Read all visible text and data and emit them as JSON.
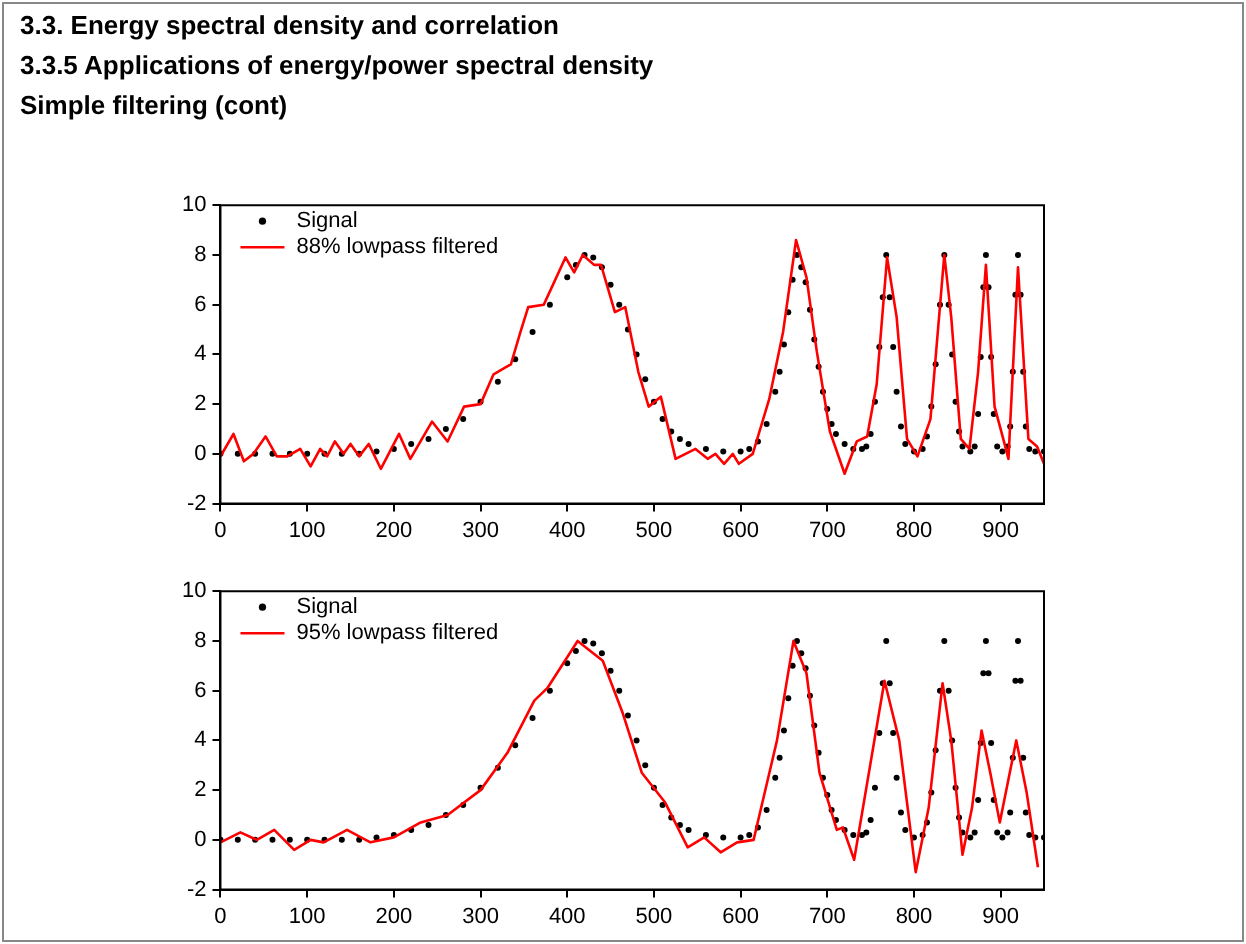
{
  "chart_data": [
    {
      "type": "scatter",
      "title": "3.3. Energy spectral density and correlation",
      "subtitle": "3.3.5 Applications of energy/power spectral density",
      "annotations": [
        "Simple filtering (cont)"
      ],
      "xlim": [
        0,
        950
      ],
      "ylim": [
        -2,
        10
      ],
      "xticks": [
        0,
        100,
        200,
        300,
        400,
        500,
        600,
        700,
        800,
        900
      ],
      "yticks": [
        -2,
        0,
        2,
        4,
        6,
        8,
        10
      ],
      "grid": false,
      "legend": "top left",
      "series": [
        {
          "name": "Signal",
          "marker": "circle",
          "color": "#000000",
          "x": [
            0,
            20,
            40,
            60,
            80,
            100,
            120,
            140,
            160,
            180,
            200,
            220,
            240,
            260,
            280,
            300,
            320,
            340,
            360,
            380,
            400,
            410,
            420,
            430,
            440,
            450,
            460,
            470,
            480,
            490,
            500,
            510,
            520,
            530,
            540,
            560,
            580,
            600,
            610,
            620,
            630,
            640,
            645,
            650,
            655,
            660,
            665,
            670,
            675,
            680,
            685,
            690,
            695,
            700,
            705,
            710,
            720,
            730,
            740,
            745,
            750,
            755,
            760,
            764,
            768,
            772,
            776,
            780,
            785,
            790,
            800,
            810,
            815,
            820,
            825,
            830,
            835,
            840,
            844,
            848,
            852,
            856,
            865,
            870,
            874,
            877,
            880,
            883,
            886,
            889,
            892,
            896,
            902,
            908,
            911,
            914,
            917,
            920,
            923,
            926,
            929,
            933,
            940,
            950
          ],
          "values": [
            0,
            0,
            0,
            0,
            0,
            0,
            0,
            0,
            0,
            0.1,
            0.2,
            0.4,
            0.6,
            1.0,
            1.4,
            2.1,
            2.9,
            3.8,
            4.9,
            6.0,
            7.1,
            7.6,
            8.0,
            7.9,
            7.5,
            6.8,
            6.0,
            5.0,
            4.0,
            3.0,
            2.1,
            1.4,
            0.9,
            0.6,
            0.4,
            0.2,
            0.1,
            0.1,
            0.2,
            0.5,
            1.2,
            2.5,
            3.3,
            4.4,
            5.7,
            7.0,
            8.0,
            7.5,
            6.9,
            5.8,
            4.6,
            3.5,
            2.5,
            1.8,
            1.2,
            0.8,
            0.4,
            0.2,
            0.2,
            0.3,
            0.8,
            2.1,
            4.3,
            6.3,
            8.0,
            6.3,
            4.3,
            2.5,
            1.1,
            0.4,
            0.1,
            0.2,
            0.7,
            1.9,
            3.6,
            6.0,
            8.0,
            6.0,
            4.0,
            2.1,
            0.9,
            0.3,
            0.1,
            0.3,
            1.6,
            3.9,
            6.7,
            8.0,
            6.7,
            3.9,
            1.6,
            0.3,
            0.1,
            0.3,
            1.1,
            3.3,
            6.4,
            8.0,
            6.4,
            3.3,
            1.1,
            0.2,
            0.1,
            0.1
          ]
        },
        {
          "name": "88% lowpass filtered",
          "type": "line",
          "marker": "none",
          "color": "#ff0000",
          "x": [
            0,
            15,
            27,
            38,
            52,
            65,
            77,
            92,
            104,
            115,
            123,
            132,
            142,
            150,
            160,
            171,
            185,
            206,
            219,
            244,
            262,
            281,
            300,
            315,
            335,
            346,
            355,
            373,
            398,
            408,
            418,
            431,
            439,
            455,
            467,
            482,
            494,
            508,
            525,
            548,
            562,
            571,
            581,
            591,
            598,
            614,
            633,
            649,
            664,
            676,
            688,
            703,
            720,
            734,
            746,
            757,
            769,
            780,
            792,
            804,
            819,
            835,
            843,
            854,
            864,
            874,
            883,
            893,
            903,
            909,
            920,
            932,
            942,
            950
          ],
          "values": [
            -0.1,
            0.8,
            -0.3,
            0,
            0.7,
            -0.1,
            -0.1,
            0.2,
            -0.5,
            0.2,
            -0.1,
            0.5,
            0,
            0.4,
            -0.1,
            0.4,
            -0.6,
            0.8,
            -0.2,
            1.3,
            0.5,
            1.9,
            2.0,
            3.2,
            3.6,
            4.9,
            5.9,
            6.0,
            7.9,
            7.3,
            8.0,
            7.6,
            7.6,
            5.7,
            5.9,
            3.3,
            1.9,
            2.3,
            -0.2,
            0.2,
            -0.2,
            0,
            -0.4,
            0,
            -0.4,
            0,
            2.2,
            4.9,
            8.6,
            7.1,
            4.1,
            0.9,
            -0.8,
            0.5,
            0.7,
            2.8,
            7.9,
            5.5,
            0.6,
            -0.1,
            1.4,
            8.0,
            5.5,
            0.6,
            0.2,
            3.3,
            7.6,
            1.9,
            0.6,
            -0.2,
            7.5,
            0.6,
            0.3,
            -0.4
          ]
        }
      ]
    },
    {
      "type": "scatter",
      "xlim": [
        0,
        950
      ],
      "ylim": [
        -2,
        10
      ],
      "xticks": [
        0,
        100,
        200,
        300,
        400,
        500,
        600,
        700,
        800,
        900
      ],
      "yticks": [
        -2,
        0,
        2,
        4,
        6,
        8,
        10
      ],
      "grid": false,
      "legend": "top left",
      "series": [
        {
          "name": "Signal",
          "marker": "circle",
          "color": "#000000",
          "x": [
            0,
            20,
            40,
            60,
            80,
            100,
            120,
            140,
            160,
            180,
            200,
            220,
            240,
            260,
            280,
            300,
            320,
            340,
            360,
            380,
            400,
            410,
            420,
            430,
            440,
            450,
            460,
            470,
            480,
            490,
            500,
            510,
            520,
            530,
            540,
            560,
            580,
            600,
            610,
            620,
            630,
            640,
            645,
            650,
            655,
            660,
            665,
            670,
            675,
            680,
            685,
            690,
            695,
            700,
            705,
            710,
            720,
            730,
            740,
            745,
            750,
            755,
            760,
            764,
            768,
            772,
            776,
            780,
            785,
            790,
            800,
            810,
            815,
            820,
            825,
            830,
            835,
            840,
            844,
            848,
            852,
            856,
            865,
            870,
            874,
            877,
            880,
            883,
            886,
            889,
            892,
            896,
            902,
            908,
            911,
            914,
            917,
            920,
            923,
            926,
            929,
            933,
            940,
            950
          ],
          "values": [
            0,
            0,
            0,
            0,
            0,
            0,
            0,
            0,
            0,
            0.1,
            0.2,
            0.4,
            0.6,
            1.0,
            1.4,
            2.1,
            2.9,
            3.8,
            4.9,
            6.0,
            7.1,
            7.6,
            8.0,
            7.9,
            7.5,
            6.8,
            6.0,
            5.0,
            4.0,
            3.0,
            2.1,
            1.4,
            0.9,
            0.6,
            0.4,
            0.2,
            0.1,
            0.1,
            0.2,
            0.5,
            1.2,
            2.5,
            3.3,
            4.4,
            5.7,
            7.0,
            8.0,
            7.5,
            6.9,
            5.8,
            4.6,
            3.5,
            2.5,
            1.8,
            1.2,
            0.8,
            0.4,
            0.2,
            0.2,
            0.3,
            0.8,
            2.1,
            4.3,
            6.3,
            8.0,
            6.3,
            4.3,
            2.5,
            1.1,
            0.4,
            0.1,
            0.2,
            0.7,
            1.9,
            3.6,
            6.0,
            8.0,
            6.0,
            4.0,
            2.1,
            0.9,
            0.3,
            0.1,
            0.3,
            1.6,
            3.9,
            6.7,
            8.0,
            6.7,
            3.9,
            1.6,
            0.3,
            0.1,
            0.3,
            1.1,
            3.3,
            6.4,
            8.0,
            6.4,
            3.3,
            1.1,
            0.2,
            0.1,
            0.1
          ]
        },
        {
          "name": "95% lowpass filtered",
          "type": "line",
          "marker": "none",
          "color": "#ff0000",
          "x": [
            0,
            23,
            42,
            62,
            85,
            104,
            119,
            146,
            173,
            200,
            231,
            262,
            300,
            331,
            362,
            377,
            412,
            441,
            464,
            486,
            513,
            539,
            558,
            577,
            596,
            615,
            642,
            661,
            676,
            691,
            711,
            718,
            731,
            748,
            766,
            783,
            802,
            817,
            833,
            843,
            856,
            867,
            878,
            888,
            899,
            918,
            930,
            943
          ],
          "values": [
            -0.1,
            0.3,
            0,
            0.4,
            -0.4,
            0,
            -0.1,
            0.4,
            -0.1,
            0.1,
            0.7,
            1.0,
            2.0,
            3.5,
            5.6,
            6.1,
            8.0,
            7.2,
            5.1,
            2.7,
            1.5,
            -0.3,
            0.1,
            -0.5,
            -0.1,
            0,
            4.0,
            8.0,
            6.7,
            2.7,
            0.4,
            0.5,
            -0.8,
            2.7,
            6.4,
            4.0,
            -1.3,
            1.3,
            6.3,
            4.0,
            -0.6,
            1.3,
            4.4,
            2.7,
            0.7,
            4.0,
            1.9,
            -1.1
          ]
        }
      ]
    }
  ]
}
